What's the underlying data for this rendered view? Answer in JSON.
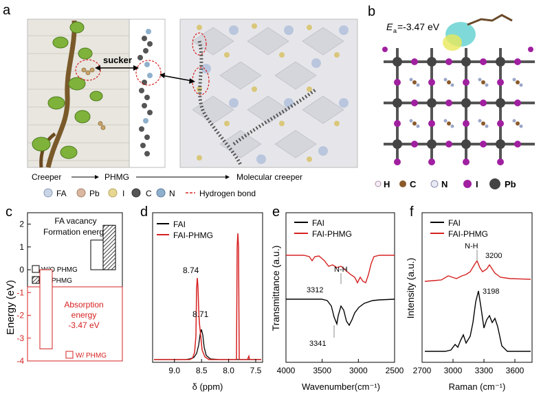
{
  "panels": {
    "a": {
      "letter": "a",
      "sucker": "sucker",
      "flow": [
        "Creeper",
        "PHMG",
        "Molecular creeper"
      ],
      "legend": [
        "FA",
        "Pb",
        "I",
        "C",
        "N",
        "Hydrogen bond"
      ]
    },
    "b": {
      "letter": "b",
      "energy_label": "E",
      "energy_sub": "a",
      "energy_value": "=-3.47 eV",
      "legend": [
        "H",
        "C",
        "N",
        "I",
        "Pb"
      ]
    },
    "c": {
      "letter": "c",
      "title1": "FA vacancy",
      "title2": "Formation energy",
      "legend_wo": "W/O PHMG",
      "legend_w": "W/ PHMG",
      "abs1": "Absorption",
      "abs2": "energy",
      "abs3": "-3.47 eV",
      "legend_w2": "W/ PHMG"
    },
    "d": {
      "letter": "d"
    },
    "e": {
      "letter": "e",
      "annot_nh": "N-H"
    },
    "f": {
      "letter": "f",
      "annot_nh": "N-H"
    }
  },
  "colors": {
    "red": "#d62020",
    "black": "#000000",
    "phmg_gray": "#555555"
  },
  "chart_data": [
    {
      "type": "bar",
      "panel": "c",
      "title": "FA vacancy Formation energy",
      "ylabel": "Energy (eV)",
      "ylim": [
        -4,
        2.5
      ],
      "yticks": [
        "-4",
        "-3",
        "-2",
        "-1",
        "0",
        "1",
        "2"
      ],
      "series": [
        {
          "name": "W/O PHMG",
          "values": [
            1.3
          ]
        },
        {
          "name": "W/ PHMG",
          "values": [
            1.95
          ]
        },
        {
          "name": "Absorption energy W/ PHMG",
          "values": [
            -3.47
          ]
        }
      ]
    },
    {
      "type": "line",
      "panel": "d",
      "xlabel": "δ (ppm)",
      "xlim": [
        9.2,
        7.5
      ],
      "xticks": [
        "9.0",
        "8.5",
        "8.0",
        "7.5"
      ],
      "series": [
        {
          "name": "FAI"
        },
        {
          "name": "FAI-PHMG"
        }
      ],
      "annotations": [
        "8.74",
        "8.71"
      ]
    },
    {
      "type": "line",
      "panel": "e",
      "xlabel": "Wavenumber(cm⁻¹)",
      "ylabel": "Transmittance (a.u.)",
      "xlim": [
        4000,
        2500
      ],
      "xticks": [
        "4000",
        "3500",
        "3000",
        "2500"
      ],
      "series": [
        {
          "name": "FAI"
        },
        {
          "name": "FAI-PHMG"
        }
      ],
      "annotations": [
        "3312",
        "3341"
      ]
    },
    {
      "type": "line",
      "panel": "f",
      "xlabel": "Raman (cm⁻¹)",
      "ylabel": "Intensity (a.u.)",
      "xlim": [
        2700,
        3700
      ],
      "xticks": [
        "2700",
        "3000",
        "3300",
        "3600"
      ],
      "series": [
        {
          "name": "FAI"
        },
        {
          "name": "FAI-PHMG"
        }
      ],
      "annotations": [
        "3200",
        "3198"
      ]
    }
  ]
}
